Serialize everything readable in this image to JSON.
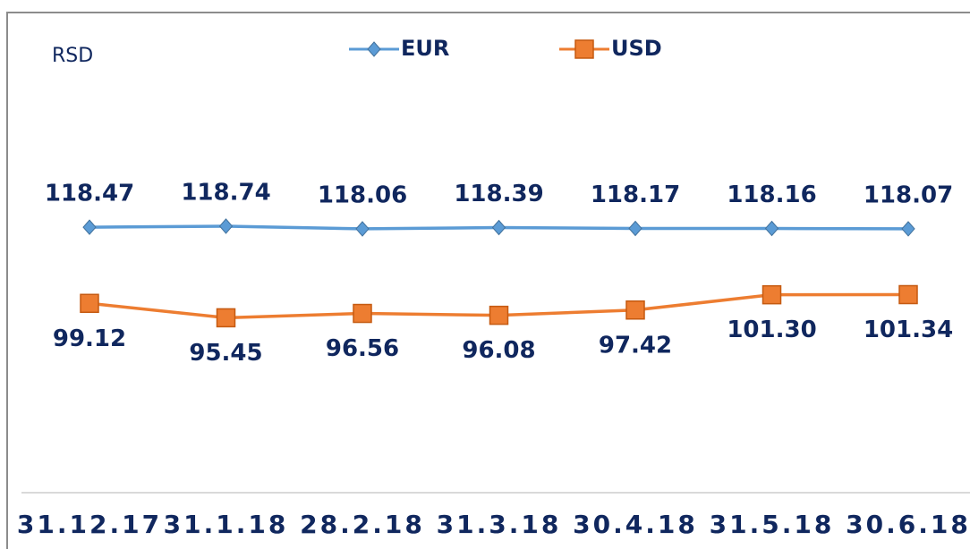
{
  "chart_data": {
    "type": "line",
    "y_label": "RSD",
    "categories": [
      "31.12.17",
      "31.1.18",
      "28.2.18",
      "31.3.18",
      "30.4.18",
      "31.5.18",
      "30.6.18"
    ],
    "series": [
      {
        "name": "EUR",
        "color": "#5b9bd5",
        "marker": "diamond",
        "values": [
          118.47,
          118.74,
          118.06,
          118.39,
          118.17,
          118.16,
          118.07
        ]
      },
      {
        "name": "USD",
        "color": "#ed7d31",
        "marker": "square",
        "values": [
          99.12,
          95.45,
          96.56,
          96.08,
          97.42,
          101.3,
          101.34
        ],
        "value_labels": [
          "99.12",
          "95.45",
          "96.56",
          "96.08",
          "97.42",
          "101.30",
          "101.34"
        ]
      }
    ],
    "ylim": [
      51,
      161
    ],
    "legend": "top"
  }
}
